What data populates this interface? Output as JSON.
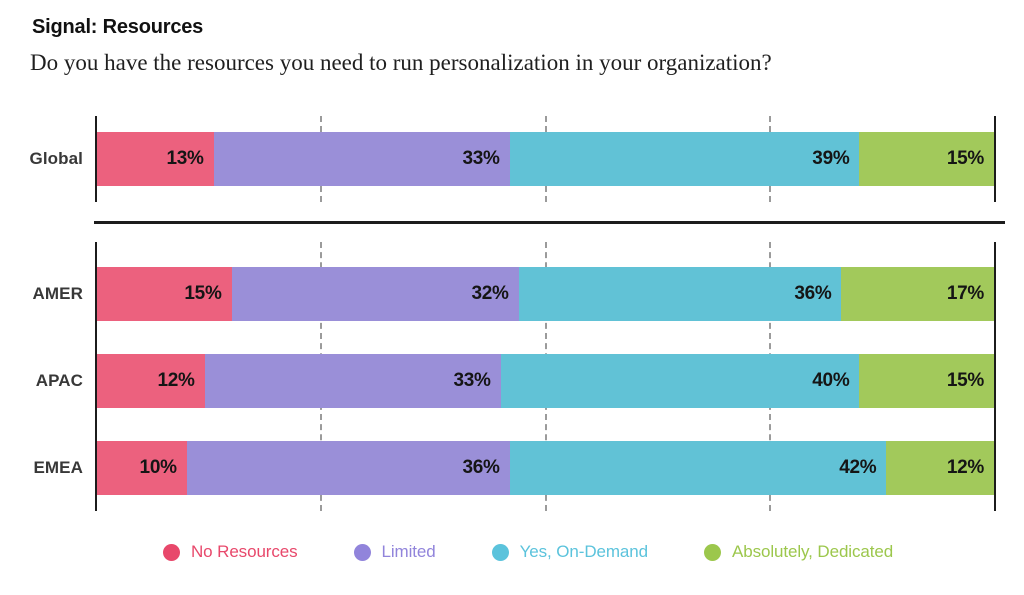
{
  "header": {
    "title": "Signal: Resources",
    "subtitle": "Do you have the resources you need to run personalization in your organization?"
  },
  "chart_data": {
    "type": "bar",
    "variant": "horizontal-stacked",
    "unit": "%",
    "title": "Signal: Resources",
    "question": "Do you have the resources you need to run personalization in your organization?",
    "categories": [
      "Global",
      "AMER",
      "APAC",
      "EMEA"
    ],
    "series": [
      {
        "name": "No Resources",
        "color": "#EC617E",
        "legend_color": "#E8486B",
        "values": [
          13,
          15,
          12,
          10
        ]
      },
      {
        "name": "Limited",
        "color": "#9A8FD8",
        "legend_color": "#9184DB",
        "values": [
          33,
          32,
          33,
          36
        ]
      },
      {
        "name": "Yes, On-Demand",
        "color": "#61C2D6",
        "legend_color": "#5BC3DC",
        "values": [
          39,
          36,
          40,
          42
        ]
      },
      {
        "name": "Absolutely, Dedicated",
        "color": "#A2C95B",
        "legend_color": "#9CC74C",
        "values": [
          15,
          17,
          15,
          12
        ]
      }
    ],
    "xlim": [
      0,
      100
    ],
    "gridlines_at": [
      25,
      50,
      75
    ],
    "row_groups": [
      [
        "Global"
      ],
      [
        "AMER",
        "APAC",
        "EMEA"
      ]
    ],
    "legend_position": "bottom",
    "value_label_format": "{v}%",
    "axis_color": "#1c1c1c",
    "gridline_color": "#9b9b9b"
  }
}
